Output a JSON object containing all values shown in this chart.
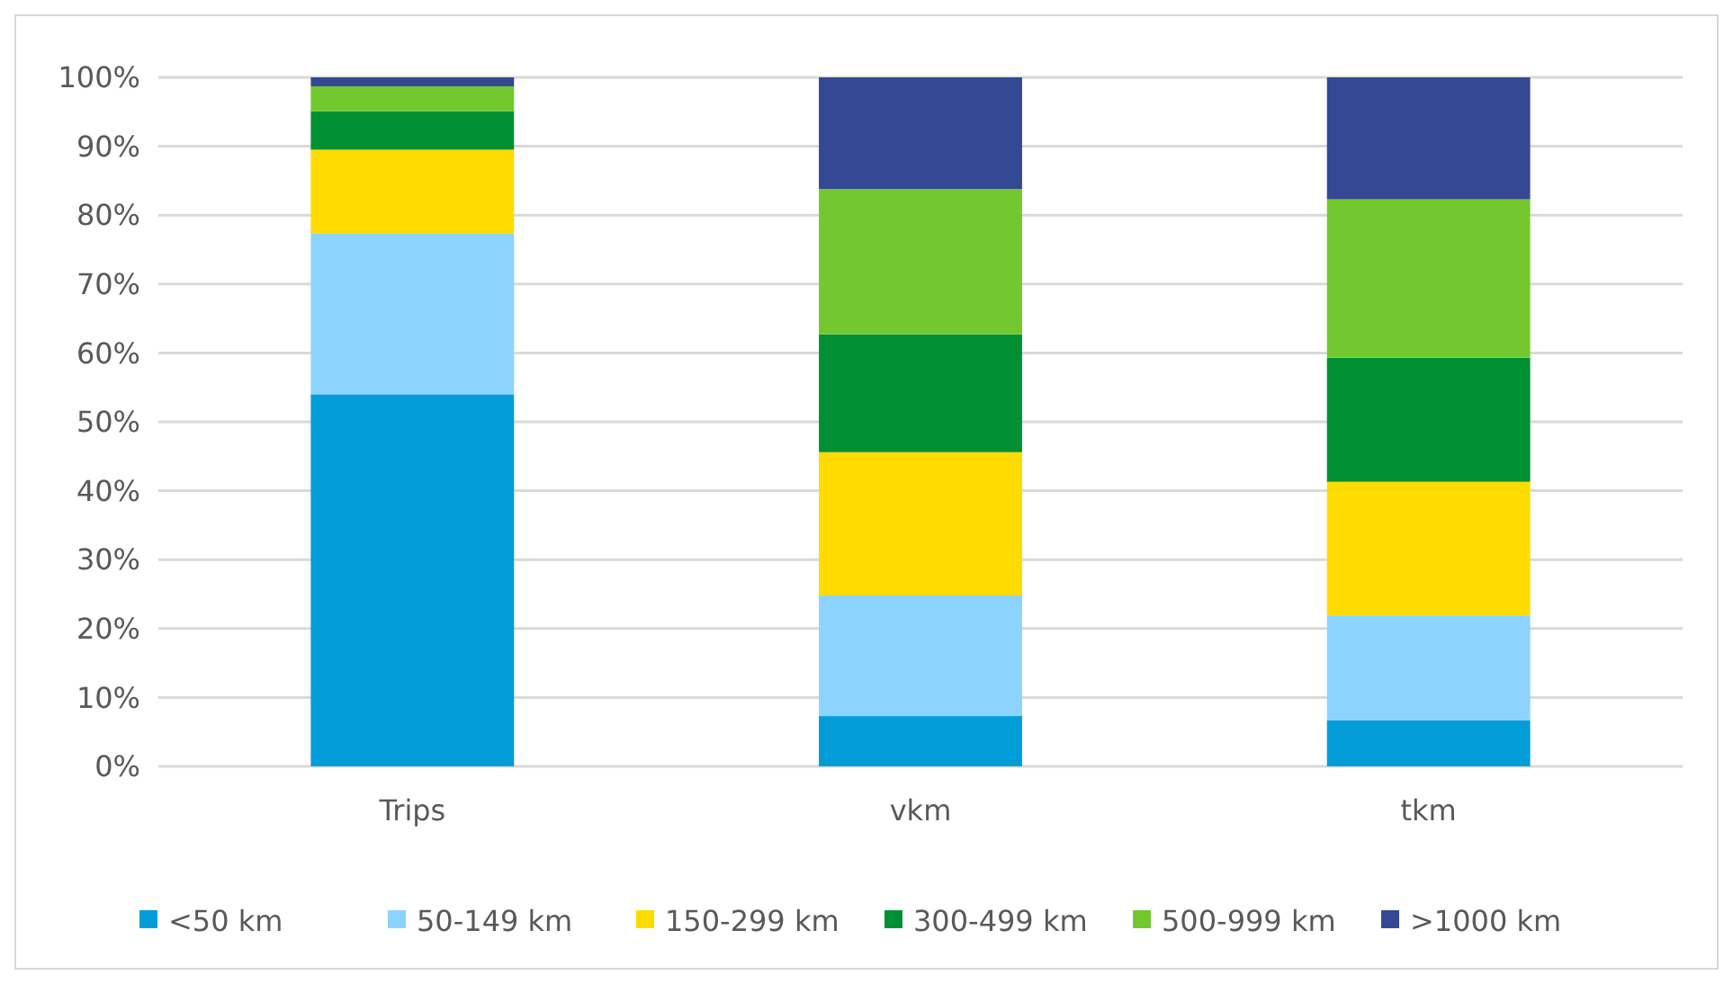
{
  "chart_data": {
    "type": "bar",
    "stacked": true,
    "categories": [
      "Trips",
      "vkm",
      "tkm"
    ],
    "series": [
      {
        "name": "<50 km",
        "color": "#009dd9",
        "values": [
          54.0,
          7.3,
          6.7
        ]
      },
      {
        "name": "50-149 km",
        "color": "#8dd3ff",
        "values": [
          23.3,
          17.5,
          15.2
        ]
      },
      {
        "name": "150-299 km",
        "color": "#ffdb00",
        "values": [
          12.2,
          20.8,
          19.4
        ]
      },
      {
        "name": "300-499 km",
        "color": "#009034",
        "values": [
          5.6,
          17.1,
          18.0
        ]
      },
      {
        "name": "500-999 km",
        "color": "#72c82e",
        "values": [
          3.6,
          21.1,
          23.0
        ]
      },
      {
        "name": ">1000 km",
        "color": "#344893",
        "values": [
          1.3,
          16.2,
          17.7
        ]
      }
    ],
    "ylim": [
      0,
      100
    ],
    "yticks": [
      {
        "value": 0,
        "label": "0%"
      },
      {
        "value": 10,
        "label": "10%"
      },
      {
        "value": 20,
        "label": "20%"
      },
      {
        "value": 30,
        "label": "30%"
      },
      {
        "value": 40,
        "label": "40%"
      },
      {
        "value": 50,
        "label": "50%"
      },
      {
        "value": 60,
        "label": "60%"
      },
      {
        "value": 70,
        "label": "70%"
      },
      {
        "value": 80,
        "label": "80%"
      },
      {
        "value": 90,
        "label": "90%"
      },
      {
        "value": 100,
        "label": "100%"
      }
    ],
    "grid": "y",
    "legend": "bottom"
  }
}
